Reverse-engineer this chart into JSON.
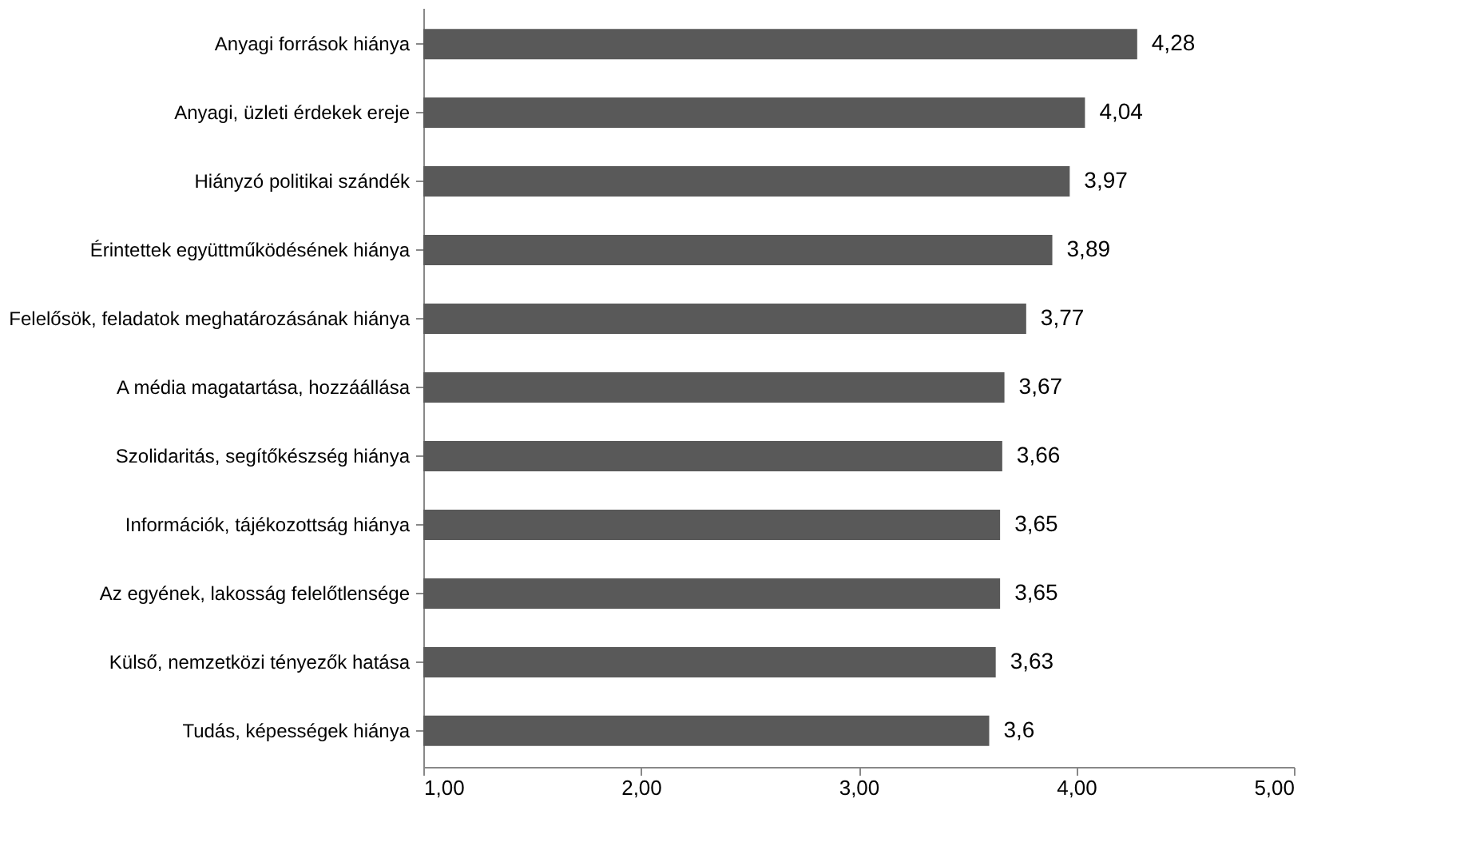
{
  "chart_data": {
    "type": "bar",
    "orientation": "horizontal",
    "categories": [
      "Anyagi források hiánya",
      "Anyagi, üzleti érdekek ereje",
      "Hiányzó politikai szándék",
      "Érintettek együttműködésének hiánya",
      "Felelősök, feladatok meghatározásának hiánya",
      "A média magatartása, hozzáállása",
      "Szolidaritás, segítőkészség hiánya",
      "Információk, tájékozottság hiánya",
      "Az egyének, lakosság felelőtlensége",
      "Külső, nemzetközi tényezők hatása",
      "Tudás, képességek hiánya"
    ],
    "values": [
      4.28,
      4.04,
      3.97,
      3.89,
      3.77,
      3.67,
      3.66,
      3.65,
      3.65,
      3.63,
      3.6
    ],
    "value_labels": [
      "4,28",
      "4,04",
      "3,97",
      "3,89",
      "3,77",
      "3,67",
      "3,66",
      "3,65",
      "3,65",
      "3,63",
      "3,6"
    ],
    "color": "#595959",
    "xlim": [
      1,
      5
    ],
    "xticks": [
      {
        "value": 1,
        "label": "1,00"
      },
      {
        "value": 2,
        "label": "2,00"
      },
      {
        "value": 3,
        "label": "3,00"
      },
      {
        "value": 4,
        "label": "4,00"
      },
      {
        "value": 5,
        "label": "5,00"
      }
    ],
    "grid": false
  }
}
